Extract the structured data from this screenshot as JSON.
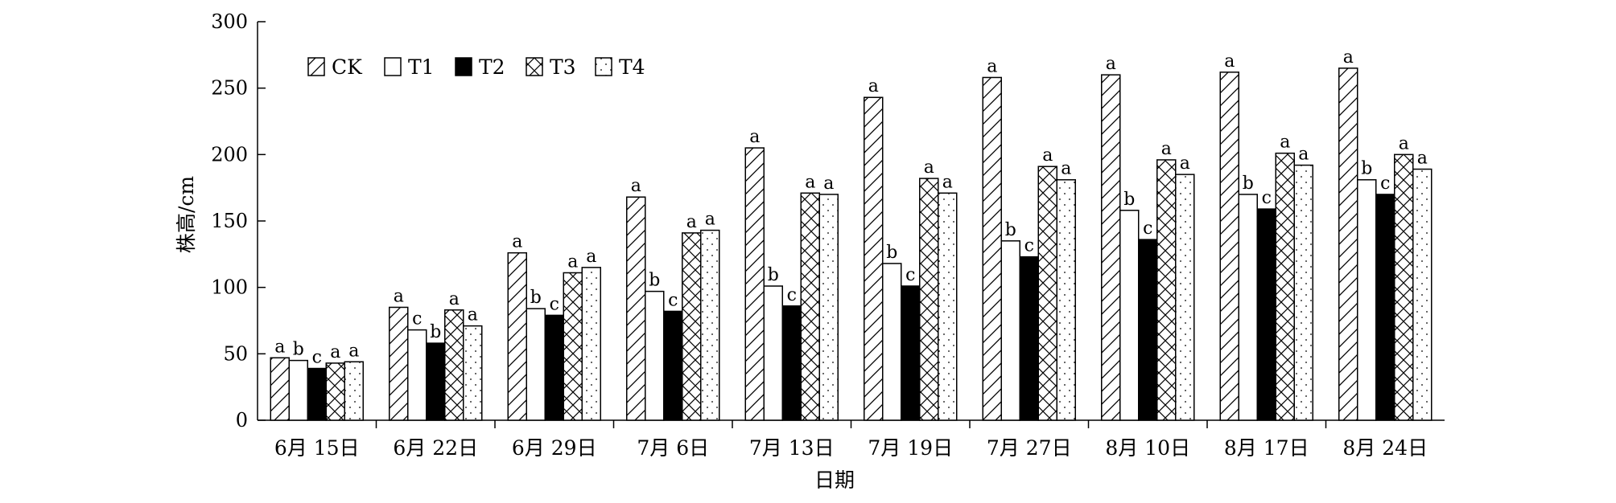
{
  "chart_data": {
    "type": "bar",
    "xlabel": "日期",
    "ylabel": "株高/cm",
    "ylim": [
      0,
      300
    ],
    "yticks": [
      "0",
      "50",
      "100",
      "150",
      "200",
      "250",
      "300"
    ],
    "legend_position": "top-left",
    "categories": [
      "6月 15日",
      "6月 22日",
      "6月 29日",
      "7月 6日",
      "7月 13日",
      "7月 19日",
      "7月 27日",
      "8月 10日",
      "8月 17日",
      "8月 24日"
    ],
    "series": [
      {
        "name": "CK",
        "pattern": "diag-hatch",
        "values": [
          47,
          85,
          126,
          168,
          205,
          243,
          258,
          260,
          262,
          265
        ],
        "labels": [
          "a",
          "a",
          "a",
          "a",
          "a",
          "a",
          "a",
          "a",
          "a",
          "a"
        ]
      },
      {
        "name": "T1",
        "pattern": "white",
        "values": [
          45,
          68,
          84,
          97,
          101,
          118,
          135,
          158,
          170,
          181
        ],
        "labels": [
          "b",
          "c",
          "b",
          "b",
          "b",
          "b",
          "b",
          "b",
          "b",
          "b"
        ]
      },
      {
        "name": "T2",
        "pattern": "black",
        "values": [
          39,
          58,
          79,
          82,
          86,
          101,
          123,
          136,
          159,
          170
        ],
        "labels": [
          "c",
          "b",
          "c",
          "c",
          "c",
          "c",
          "c",
          "c",
          "c",
          "c"
        ]
      },
      {
        "name": "T3",
        "pattern": "cross-hatch",
        "values": [
          43,
          83,
          111,
          141,
          171,
          182,
          191,
          196,
          201,
          200
        ],
        "labels": [
          "a",
          "a",
          "a",
          "a",
          "a",
          "a",
          "a",
          "a",
          "a",
          "a"
        ]
      },
      {
        "name": "T4",
        "pattern": "dotted",
        "values": [
          44,
          71,
          115,
          143,
          170,
          171,
          181,
          185,
          192,
          189
        ],
        "labels": [
          "a",
          "a",
          "a",
          "a",
          "a",
          "a",
          "a",
          "a",
          "a",
          "a"
        ]
      }
    ]
  }
}
